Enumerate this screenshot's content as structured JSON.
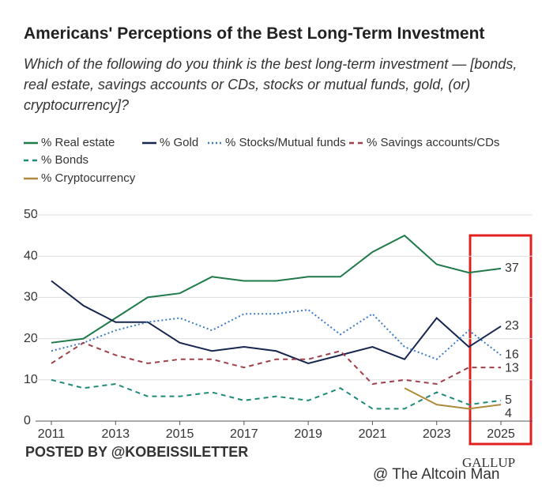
{
  "chart_data": {
    "type": "line",
    "title": "Americans' Perceptions of the Best Long-Term Investment",
    "subtitle": "Which of the following do you think is the best long-term investment — [bonds, real estate, savings accounts or CDs, stocks or mutual funds, gold, (or) cryptocurrency]?",
    "x": [
      2011,
      2012,
      2013,
      2014,
      2015,
      2016,
      2017,
      2018,
      2019,
      2020,
      2021,
      2022,
      2023,
      2024,
      2025
    ],
    "xlim": [
      2011,
      2025
    ],
    "xticks": [
      2011,
      2013,
      2015,
      2017,
      2019,
      2021,
      2023,
      2025
    ],
    "ylim": [
      0,
      50
    ],
    "yticks": [
      0,
      10,
      20,
      30,
      40,
      50
    ],
    "grid": true,
    "series": [
      {
        "name": "% Real estate",
        "color": "#1f7a4a",
        "style": "solid",
        "values": [
          19,
          20,
          25,
          30,
          31,
          35,
          34,
          34,
          35,
          35,
          41,
          45,
          38,
          36,
          37
        ]
      },
      {
        "name": "% Gold",
        "color": "#16264f",
        "style": "solid",
        "values": [
          34,
          28,
          24,
          24,
          19,
          17,
          18,
          17,
          14,
          16,
          18,
          15,
          25,
          18,
          23
        ]
      },
      {
        "name": "% Stocks/Mutual funds",
        "color": "#3b7bc6",
        "style": "dotted",
        "values": [
          17,
          19,
          22,
          24,
          25,
          22,
          26,
          26,
          27,
          21,
          26,
          18,
          15,
          22,
          16
        ]
      },
      {
        "name": "% Savings accounts/CDs",
        "color": "#9e3f4a",
        "style": "dashed",
        "values": [
          14,
          19,
          16,
          14,
          15,
          15,
          13,
          15,
          15,
          17,
          9,
          10,
          9,
          13,
          13
        ]
      },
      {
        "name": "% Bonds",
        "color": "#1e8a78",
        "style": "dashed",
        "values": [
          10,
          8,
          9,
          6,
          6,
          7,
          5,
          6,
          5,
          8,
          3,
          3,
          7,
          4,
          5
        ]
      },
      {
        "name": "% Cryptocurrency",
        "color": "#ad8a3c",
        "style": "solid",
        "values": [
          null,
          null,
          null,
          null,
          null,
          null,
          null,
          null,
          null,
          null,
          null,
          8,
          4,
          3,
          4
        ]
      }
    ],
    "annotations": [
      "POSTED BY @KOBEISSILETTER",
      "GALLUP",
      "@ The Altcoin Man"
    ]
  }
}
